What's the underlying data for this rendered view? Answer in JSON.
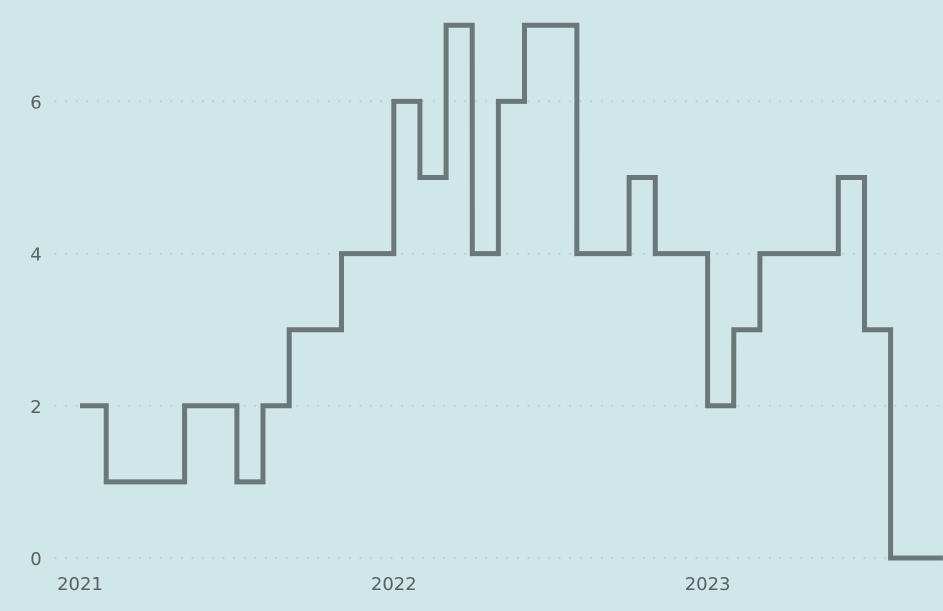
{
  "chart_data": {
    "type": "line",
    "step": true,
    "title": "",
    "xlabel": "",
    "ylabel": "",
    "x_ticks": [
      "2021",
      "2022",
      "2023"
    ],
    "y_ticks": [
      "0",
      "2",
      "4",
      "6"
    ],
    "xlim": [
      "2021-01",
      "2023-09"
    ],
    "ylim": [
      0,
      7
    ],
    "grid": "horizontal dotted",
    "legend": "none",
    "colors": {
      "background": "#cfe7e8",
      "line": "#6c7779",
      "grid": "#b4c7c8",
      "text": "#5a5f60"
    },
    "series": [
      {
        "x": [
          "2021-01",
          "2021-02",
          "2021-03",
          "2021-04",
          "2021-05",
          "2021-06",
          "2021-07",
          "2021-08",
          "2021-09",
          "2021-10",
          "2021-11",
          "2021-12",
          "2022-01",
          "2022-02",
          "2022-03",
          "2022-04",
          "2022-05",
          "2022-06",
          "2022-07",
          "2022-08",
          "2022-09",
          "2022-10",
          "2022-11",
          "2022-12",
          "2023-01",
          "2023-02",
          "2023-03",
          "2023-04",
          "2023-05",
          "2023-06",
          "2023-07",
          "2023-08",
          "2023-09"
        ],
        "values": [
          2,
          1,
          1,
          1,
          2,
          2,
          1,
          2,
          3,
          3,
          4,
          4,
          6,
          5,
          7,
          4,
          6,
          7,
          7,
          4,
          4,
          5,
          4,
          4,
          2,
          3,
          4,
          4,
          4,
          5,
          3,
          0,
          0
        ]
      }
    ]
  }
}
